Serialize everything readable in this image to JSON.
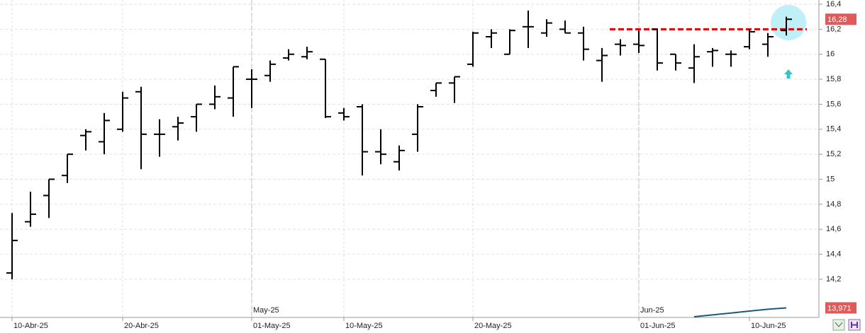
{
  "chart_data": {
    "type": "ohlc",
    "categories": [
      "10-Abr-25",
      null,
      null,
      null,
      null,
      null,
      "20-Abr-25",
      null,
      null,
      null,
      null,
      null,
      null,
      "01-May-25",
      null,
      null,
      null,
      null,
      "10-May-25",
      null,
      null,
      null,
      null,
      null,
      null,
      "20-May-25",
      null,
      null,
      null,
      null,
      null,
      null,
      null,
      null,
      "01-Jun-25",
      null,
      null,
      null,
      null,
      null,
      "10-Jun-25",
      null,
      null
    ],
    "month_labels": [
      null,
      null,
      null,
      null,
      null,
      null,
      null,
      null,
      null,
      null,
      null,
      null,
      null,
      "May-25",
      null,
      null,
      null,
      null,
      null,
      null,
      null,
      null,
      null,
      null,
      null,
      null,
      null,
      null,
      null,
      null,
      null,
      null,
      null,
      null,
      "Jun-25",
      null,
      null,
      null,
      null,
      null,
      null,
      null,
      null
    ],
    "open": [
      14.25,
      14.66,
      14.87,
      15.03,
      15.35,
      15.3,
      15.4,
      15.7,
      15.36,
      15.42,
      15.5,
      15.6,
      15.65,
      15.8,
      15.83,
      15.97,
      15.98,
      15.96,
      15.53,
      15.58,
      15.22,
      15.14,
      15.36,
      15.71,
      15.77,
      15.92,
      16.14,
      16.0,
      16.22,
      16.17,
      16.2,
      16.17,
      15.95,
      16.08,
      16.08,
      16.2,
      16.0,
      15.89,
      16.02,
      16.0,
      16.06,
      16.08,
      16.19
    ],
    "high": [
      14.73,
      14.9,
      15.0,
      15.2,
      15.4,
      15.53,
      15.7,
      15.74,
      15.48,
      15.5,
      15.6,
      15.75,
      15.9,
      15.88,
      15.95,
      16.04,
      16.06,
      15.96,
      15.57,
      15.6,
      15.4,
      15.27,
      15.6,
      15.77,
      15.82,
      16.18,
      16.2,
      16.2,
      16.35,
      16.28,
      16.27,
      16.22,
      16.05,
      16.12,
      16.19,
      16.2,
      16.0,
      16.08,
      16.05,
      16.03,
      16.2,
      16.17,
      16.3
    ],
    "low": [
      14.2,
      14.62,
      14.69,
      14.97,
      15.23,
      15.2,
      15.38,
      15.08,
      15.18,
      15.31,
      15.38,
      15.56,
      15.5,
      15.57,
      15.78,
      15.95,
      15.96,
      15.49,
      15.47,
      15.03,
      15.12,
      15.07,
      15.22,
      15.66,
      15.61,
      15.9,
      16.05,
      16.0,
      16.05,
      16.14,
      16.17,
      15.95,
      15.78,
      15.99,
      16.01,
      15.87,
      15.87,
      15.77,
      15.9,
      15.9,
      16.04,
      15.98,
      16.15
    ],
    "close": [
      14.51,
      14.72,
      15.0,
      15.2,
      15.38,
      15.47,
      15.65,
      15.36,
      15.36,
      15.45,
      15.6,
      15.66,
      15.9,
      15.8,
      15.92,
      16.0,
      16.02,
      15.5,
      15.5,
      15.22,
      15.2,
      15.23,
      15.58,
      15.77,
      15.82,
      16.17,
      16.17,
      16.19,
      16.22,
      16.25,
      16.17,
      16.04,
      15.99,
      16.07,
      16.07,
      15.93,
      15.93,
      15.98,
      16.03,
      16.0,
      16.18,
      16.14,
      16.28
    ],
    "color": "#000000",
    "ylim": [
      13.9,
      16.434
    ],
    "yticks": [
      {
        "value": 14.2,
        "label": "14,2"
      },
      {
        "value": 14.4,
        "label": "14,4"
      },
      {
        "value": 14.6,
        "label": "14,6"
      },
      {
        "value": 14.8,
        "label": "14,8"
      },
      15,
      {
        "value": 15.2,
        "label": "15,2"
      },
      {
        "value": 15.4,
        "label": "15,4"
      },
      {
        "value": 15.6,
        "label": "15,6"
      },
      {
        "value": 15.8,
        "label": "15,8"
      },
      16,
      {
        "value": 16.2,
        "label": "16,2"
      },
      {
        "value": 16.4,
        "label": "16,4"
      }
    ],
    "grid": true,
    "last_price": {
      "value": 16.28,
      "label": "16,28",
      "color": "#e05a5a"
    },
    "reference_line": {
      "value": 16.2,
      "color": "#e00000"
    },
    "indicator": {
      "values": [
        null,
        null,
        null,
        null,
        null,
        null,
        null,
        null,
        null,
        null,
        null,
        null,
        null,
        null,
        null,
        null,
        null,
        null,
        null,
        null,
        null,
        null,
        null,
        null,
        null,
        null,
        null,
        null,
        null,
        null,
        null,
        null,
        null,
        null,
        null,
        null,
        null,
        13.9,
        13.915,
        13.93,
        13.945,
        13.96,
        13.971
      ],
      "value_label": "13,971",
      "color": "#1d5a7a",
      "tag_color": "#e05a5a"
    }
  }
}
